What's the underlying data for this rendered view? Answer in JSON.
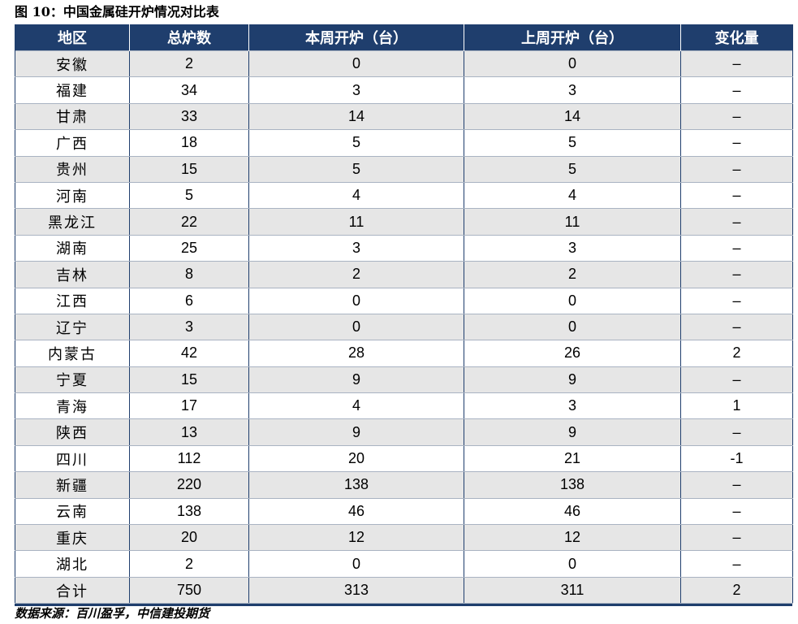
{
  "title": "图 10：中国金属硅开炉情况对比表",
  "table": {
    "headers": [
      "地区",
      "总炉数",
      "本周开炉（台）",
      "上周开炉（台）",
      "变化量"
    ],
    "rows": [
      [
        "安徽",
        "2",
        "0",
        "0",
        "–"
      ],
      [
        "福建",
        "34",
        "3",
        "3",
        "–"
      ],
      [
        "甘肃",
        "33",
        "14",
        "14",
        "–"
      ],
      [
        "广西",
        "18",
        "5",
        "5",
        "–"
      ],
      [
        "贵州",
        "15",
        "5",
        "5",
        "–"
      ],
      [
        "河南",
        "5",
        "4",
        "4",
        "–"
      ],
      [
        "黑龙江",
        "22",
        "11",
        "11",
        "–"
      ],
      [
        "湖南",
        "25",
        "3",
        "3",
        "–"
      ],
      [
        "吉林",
        "8",
        "2",
        "2",
        "–"
      ],
      [
        "江西",
        "6",
        "0",
        "0",
        "–"
      ],
      [
        "辽宁",
        "3",
        "0",
        "0",
        "–"
      ],
      [
        "内蒙古",
        "42",
        "28",
        "26",
        "2"
      ],
      [
        "宁夏",
        "15",
        "9",
        "9",
        "–"
      ],
      [
        "青海",
        "17",
        "4",
        "3",
        "1"
      ],
      [
        "陕西",
        "13",
        "9",
        "9",
        "–"
      ],
      [
        "四川",
        "112",
        "20",
        "21",
        "-1"
      ],
      [
        "新疆",
        "220",
        "138",
        "138",
        "–"
      ],
      [
        "云南",
        "138",
        "46",
        "46",
        "–"
      ],
      [
        "重庆",
        "20",
        "12",
        "12",
        "–"
      ],
      [
        "湖北",
        "2",
        "0",
        "0",
        "–"
      ],
      [
        "合计",
        "750",
        "313",
        "311",
        "2"
      ]
    ]
  },
  "source": "数据来源：百川盈孚，中信建投期货",
  "colors": {
    "header_bg": "#1f3e6d",
    "header_text": "#ffffff",
    "stripe": "#e6e6e6"
  }
}
